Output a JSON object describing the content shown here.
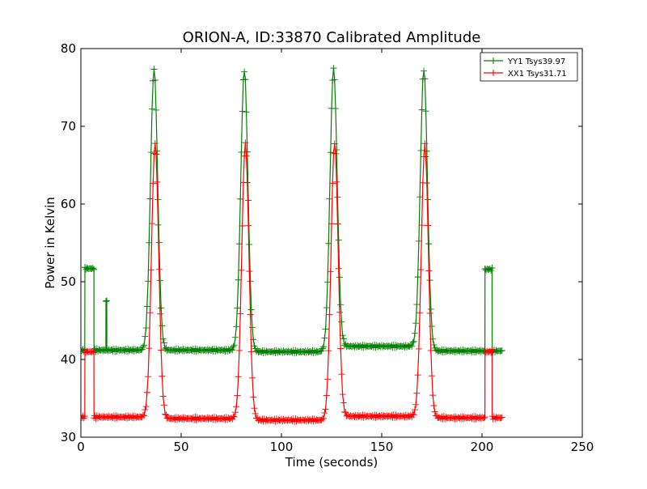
{
  "chart_data": {
    "type": "line",
    "title": "ORION-A, ID:33870 Calibrated Amplitude",
    "xlabel": "Time (seconds)",
    "ylabel": "Power in Kelvin",
    "xlim": [
      0,
      250
    ],
    "ylim": [
      30,
      80
    ],
    "x_ticks": [
      0,
      50,
      100,
      150,
      200,
      250
    ],
    "y_ticks": [
      30,
      40,
      50,
      60,
      70,
      80
    ],
    "grid": false,
    "legend_position": "top-right",
    "marker": "plus",
    "series": [
      {
        "name": "YY1 Tsys39.97",
        "color": "#008000",
        "baseline_segments": [
          {
            "from": 0,
            "to": 30,
            "value": 41.2
          },
          {
            "from": 40,
            "to": 75,
            "value": 41.2
          },
          {
            "from": 85,
            "to": 120,
            "value": 41.0
          },
          {
            "from": 130,
            "to": 165,
            "value": 41.7
          },
          {
            "from": 175,
            "to": 210,
            "value": 41.1
          }
        ],
        "peaks": [
          {
            "center": 36.5,
            "height": 77.3
          },
          {
            "center": 81.5,
            "height": 77.2
          },
          {
            "center": 126.0,
            "height": 77.4
          },
          {
            "center": 171.0,
            "height": 77.3
          }
        ],
        "steps": [
          {
            "from": 2.0,
            "to": 6.5,
            "value": 51.7
          },
          {
            "from": 12.5,
            "to": 12.9,
            "value": 47.5
          },
          {
            "from": 201.5,
            "to": 205.0,
            "value": 51.6
          }
        ]
      },
      {
        "name": "XX1 Tsys31.71",
        "color": "#ff0000",
        "baseline_segments": [
          {
            "from": 0,
            "to": 30,
            "value": 32.6
          },
          {
            "from": 40,
            "to": 75,
            "value": 32.4
          },
          {
            "from": 85,
            "to": 120,
            "value": 32.2
          },
          {
            "from": 130,
            "to": 165,
            "value": 32.7
          },
          {
            "from": 175,
            "to": 210,
            "value": 32.5
          }
        ],
        "peaks": [
          {
            "center": 37.0,
            "height": 67.8
          },
          {
            "center": 82.0,
            "height": 67.7
          },
          {
            "center": 126.5,
            "height": 67.8
          },
          {
            "center": 171.5,
            "height": 67.6
          }
        ],
        "steps": [
          {
            "from": 2.0,
            "to": 6.5,
            "value": 41.0
          },
          {
            "from": 201.5,
            "to": 205.0,
            "value": 41.0
          }
        ]
      }
    ]
  }
}
